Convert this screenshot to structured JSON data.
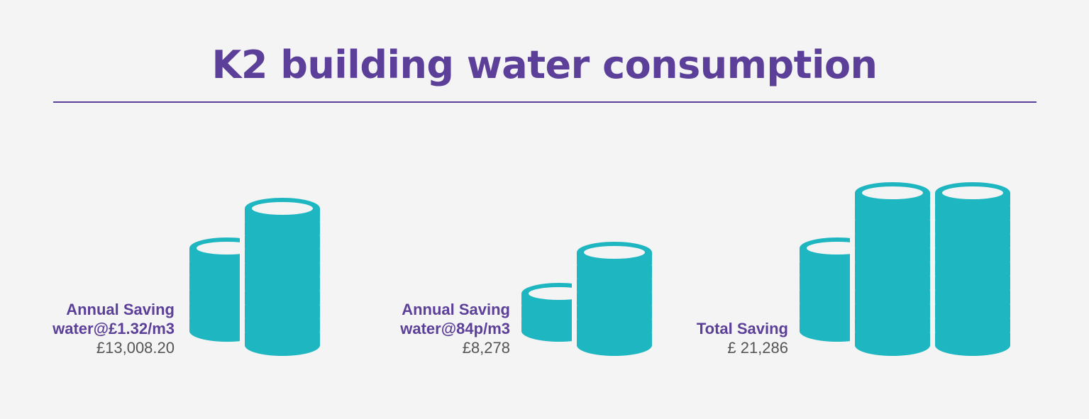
{
  "title": "K2 building water consumption",
  "colors": {
    "background": "#f4f4f4",
    "title": "#5b3f98",
    "divider": "#5b3f98",
    "label_strong": "#5b3f98",
    "label_amount": "#555555",
    "coin": "#1eb6c0",
    "coin_highlight": "#f4f4f4"
  },
  "groups": [
    {
      "label_lines": [
        "Annual Saving",
        "water@£1.32/m3"
      ],
      "amount": "£13,008.20",
      "icon": "coin-stack-icon"
    },
    {
      "label_lines": [
        "Annual Saving",
        "water@84p/m3"
      ],
      "amount": "£8,278",
      "icon": "coin-stack-icon"
    },
    {
      "label_lines": [
        "Total Saving"
      ],
      "amount": "£ 21,286",
      "icon": "coin-stack-icon"
    }
  ]
}
